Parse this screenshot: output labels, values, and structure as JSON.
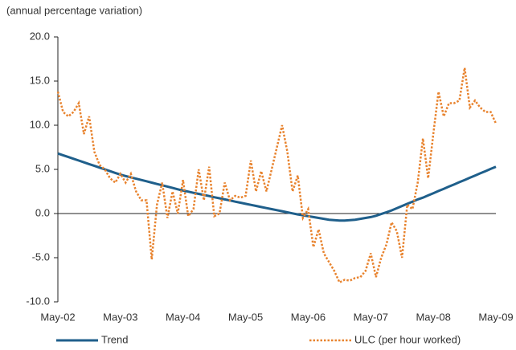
{
  "chart_data": {
    "type": "line",
    "subtitle": "(annual percentage variation)",
    "categories": [
      "May-02",
      null,
      null,
      null,
      null,
      null,
      null,
      null,
      null,
      null,
      null,
      null,
      "May-03",
      null,
      null,
      null,
      null,
      null,
      null,
      null,
      null,
      null,
      null,
      null,
      "May-04",
      null,
      null,
      null,
      null,
      null,
      null,
      null,
      null,
      null,
      null,
      null,
      "May-05",
      null,
      null,
      null,
      null,
      null,
      null,
      null,
      null,
      null,
      null,
      null,
      "May-06",
      null,
      null,
      null,
      null,
      null,
      null,
      null,
      null,
      null,
      null,
      null,
      "May-07",
      null,
      null,
      null,
      null,
      null,
      null,
      null,
      null,
      null,
      null,
      null,
      "May-08",
      null,
      null,
      null,
      null,
      null,
      null,
      null,
      null,
      null,
      null,
      null,
      "May-09"
    ],
    "series": [
      {
        "name": "Trend",
        "color": "#1f5f8b",
        "line_style": "solid",
        "values": [
          6.8,
          6.6,
          6.4,
          6.2,
          6.0,
          5.8,
          5.6,
          5.4,
          5.2,
          5.0,
          4.8,
          4.6,
          4.4,
          4.25,
          4.1,
          3.95,
          3.8,
          3.65,
          3.5,
          3.35,
          3.2,
          3.05,
          2.9,
          2.75,
          2.6,
          2.48,
          2.35,
          2.23,
          2.1,
          1.98,
          1.85,
          1.73,
          1.6,
          1.48,
          1.35,
          1.23,
          1.1,
          0.98,
          0.86,
          0.74,
          0.62,
          0.5,
          0.38,
          0.26,
          0.14,
          0.02,
          -0.1,
          -0.2,
          -0.3,
          -0.4,
          -0.5,
          -0.6,
          -0.7,
          -0.75,
          -0.8,
          -0.8,
          -0.75,
          -0.7,
          -0.6,
          -0.5,
          -0.4,
          -0.25,
          -0.05,
          0.15,
          0.35,
          0.6,
          0.85,
          1.1,
          1.35,
          1.6,
          1.8,
          2.05,
          2.3,
          2.55,
          2.8,
          3.05,
          3.3,
          3.55,
          3.8,
          4.05,
          4.3,
          4.55,
          4.8,
          5.05,
          5.3
        ]
      },
      {
        "name": "ULC (per hour worked)",
        "color": "#e8832e",
        "line_style": "dotted",
        "values": [
          13.8,
          11.5,
          11,
          11.5,
          12.5,
          9,
          11,
          7,
          5.5,
          5,
          4,
          3.5,
          4.5,
          3.5,
          4.5,
          2.5,
          1.5,
          1.5,
          -5.2,
          1,
          3.5,
          -0.5,
          2.5,
          0,
          3.8,
          -0.3,
          0.5,
          5,
          1.5,
          5.3,
          -0.3,
          0,
          3.5,
          1.5,
          2,
          1.8,
          2,
          6,
          2.5,
          4.8,
          2.5,
          5,
          7.5,
          10,
          7,
          2.5,
          4.3,
          -0.5,
          0.5,
          -3.8,
          -1.8,
          -4.5,
          -5.5,
          -6.5,
          -7.8,
          -7.5,
          -7.6,
          -7.3,
          -7.2,
          -6.5,
          -4.5,
          -7.2,
          -5,
          -3.5,
          -1,
          -2,
          -5,
          1,
          0.5,
          3.5,
          8.5,
          4,
          9,
          13.8,
          11,
          12.5,
          12.5,
          12.8,
          16.5,
          12,
          12.8,
          12,
          11.5,
          11.5,
          10.2
        ]
      }
    ],
    "ylim": [
      -10,
      20
    ],
    "yticks": [
      {
        "value": -10,
        "label": "-10.0"
      },
      {
        "value": -5,
        "label": "-5.0"
      },
      {
        "value": 0,
        "label": "0.0"
      },
      {
        "value": 5,
        "label": "5.0"
      },
      {
        "value": 10,
        "label": "10.0"
      },
      {
        "value": 15,
        "label": "15.0"
      },
      {
        "value": 20,
        "label": "20.0"
      }
    ],
    "grid": false,
    "legend": "bottom"
  }
}
